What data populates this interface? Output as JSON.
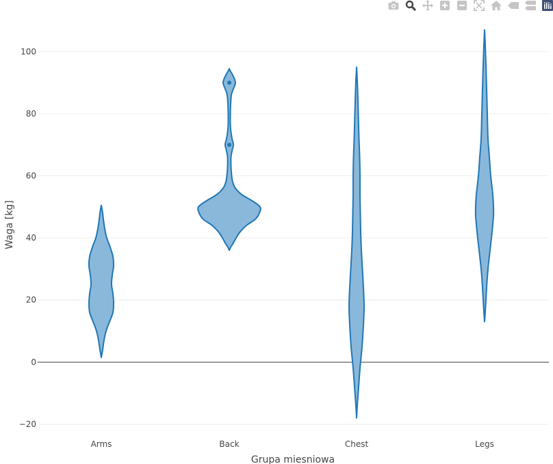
{
  "colors": {
    "violin_fill": "#8ab8db",
    "violin_line": "#1f77b4",
    "grid": "#eeeeee",
    "zero_line": "#444444",
    "text": "#444444",
    "modebar_icon": "#c5c5c5",
    "modebar_active": "#444444",
    "plotly_logo": "#3f4f75"
  },
  "modebar": {
    "buttons": [
      "camera-icon",
      "zoom-icon",
      "pan-icon",
      "zoom-in-icon",
      "zoom-out-icon",
      "autoscale-icon",
      "reset-axes-icon",
      "hover-closest-icon",
      "hover-compare-icon",
      "plotly-logo-icon"
    ]
  },
  "chart_data": {
    "type": "violin",
    "title": "",
    "xlabel": "Grupa miesniowa",
    "ylabel": "Waga [kg]",
    "categories": [
      "Arms",
      "Back",
      "Chest",
      "Legs"
    ],
    "ylim": [
      -22,
      110
    ],
    "yticks": [
      -20,
      0,
      20,
      40,
      60,
      80,
      100
    ],
    "ytick_labels": [
      "−20",
      "0",
      "20",
      "40",
      "60",
      "80",
      "100"
    ],
    "grid": true,
    "legend": "none",
    "violins": [
      {
        "category": "Arms",
        "profile": [
          [
            1.5,
            0
          ],
          [
            4,
            2
          ],
          [
            7,
            4
          ],
          [
            10,
            7
          ],
          [
            13,
            12
          ],
          [
            16,
            17
          ],
          [
            19,
            18
          ],
          [
            22,
            17
          ],
          [
            25,
            15
          ],
          [
            28,
            16
          ],
          [
            31,
            18
          ],
          [
            34,
            17
          ],
          [
            37,
            13
          ],
          [
            40,
            8
          ],
          [
            43,
            5
          ],
          [
            46,
            3
          ],
          [
            48,
            2
          ],
          [
            50.5,
            0
          ]
        ],
        "points": []
      },
      {
        "category": "Back",
        "profile": [
          [
            36,
            0
          ],
          [
            37,
            2
          ],
          [
            38,
            5
          ],
          [
            40,
            10
          ],
          [
            42,
            16
          ],
          [
            44,
            25
          ],
          [
            46,
            38
          ],
          [
            48,
            44
          ],
          [
            50,
            45
          ],
          [
            52,
            33
          ],
          [
            54,
            18
          ],
          [
            56,
            9
          ],
          [
            58,
            5
          ],
          [
            60,
            3.5
          ],
          [
            63,
            2.5
          ],
          [
            66,
            2.5
          ],
          [
            68,
            4
          ],
          [
            70,
            6
          ],
          [
            72,
            4
          ],
          [
            75,
            2
          ],
          [
            78,
            1.5
          ],
          [
            82,
            1.8
          ],
          [
            86,
            3
          ],
          [
            88,
            6
          ],
          [
            90,
            9
          ],
          [
            92,
            6
          ],
          [
            94,
            1
          ],
          [
            94.5,
            0
          ]
        ],
        "points": [
          70,
          90
        ]
      },
      {
        "category": "Chest",
        "profile": [
          [
            -18,
            0
          ],
          [
            -14,
            1
          ],
          [
            -8,
            3
          ],
          [
            -2,
            5
          ],
          [
            5,
            8
          ],
          [
            12,
            10
          ],
          [
            18,
            11
          ],
          [
            24,
            10
          ],
          [
            30,
            8.5
          ],
          [
            36,
            7
          ],
          [
            42,
            6
          ],
          [
            48,
            5.5
          ],
          [
            54,
            5
          ],
          [
            60,
            5
          ],
          [
            66,
            4.5
          ],
          [
            72,
            3.5
          ],
          [
            80,
            2.5
          ],
          [
            88,
            1.5
          ],
          [
            95,
            0
          ]
        ],
        "points": []
      },
      {
        "category": "Legs",
        "profile": [
          [
            13,
            0
          ],
          [
            18,
            1.5
          ],
          [
            24,
            3
          ],
          [
            30,
            5
          ],
          [
            36,
            8
          ],
          [
            42,
            11
          ],
          [
            47,
            13
          ],
          [
            50,
            13
          ],
          [
            54,
            12
          ],
          [
            60,
            9
          ],
          [
            66,
            7
          ],
          [
            72,
            5
          ],
          [
            80,
            4
          ],
          [
            88,
            3
          ],
          [
            96,
            2
          ],
          [
            102,
            1
          ],
          [
            107,
            0
          ]
        ],
        "points": []
      }
    ]
  }
}
